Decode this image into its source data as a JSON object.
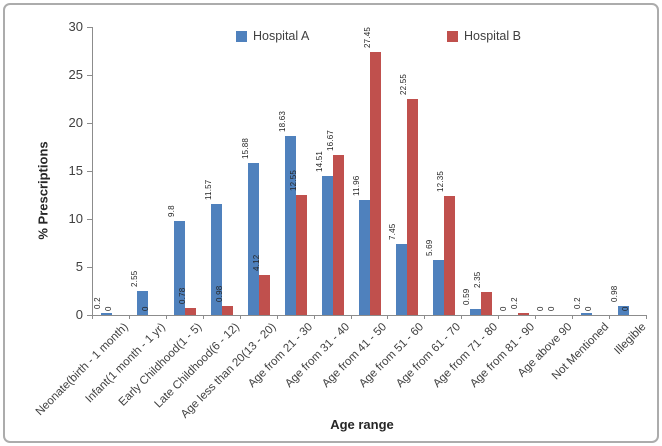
{
  "chart_data": {
    "type": "bar",
    "title": "",
    "xlabel": "Age range",
    "ylabel": "% Prescriptions",
    "ylim": [
      0,
      30
    ],
    "yticks": [
      0,
      5,
      10,
      15,
      20,
      25,
      30
    ],
    "grid": false,
    "legend_position": "top-inside",
    "categories": [
      "Neonate(birth - 1 month)",
      "Infant(1 month - 1 yr)",
      "Early Childhood(1 - 5)",
      "Late Childhood(6 - 12)",
      "Age less than 20(13 - 20)",
      "Age from 21 - 30",
      "Age from 31 - 40",
      "Age from 41 - 50",
      "Age from 51 - 60",
      "Age from 61 - 70",
      "Age from 71 - 80",
      "Age from 81 - 90",
      "Age above 90",
      "Not Mentioned",
      "Illegible"
    ],
    "series": [
      {
        "name": "Hospital A",
        "color": "#4F81BD",
        "values": [
          0.2,
          2.55,
          9.8,
          11.57,
          15.88,
          18.63,
          14.51,
          11.96,
          7.45,
          5.69,
          0.59,
          0,
          0,
          0.2,
          0.98
        ],
        "labels": [
          "0.2",
          "2.55",
          "9.8",
          "11.57",
          "15.88",
          "18.63",
          "14.51",
          "11.96",
          "7.45",
          "5.69",
          "0.59",
          "0",
          "0",
          "0.2",
          "0.98"
        ]
      },
      {
        "name": "Hospital B",
        "color": "#C0504D",
        "values": [
          0,
          0,
          0.78,
          0.98,
          4.12,
          12.55,
          16.67,
          27.45,
          22.55,
          12.35,
          2.35,
          0.2,
          0,
          0,
          0
        ],
        "labels": [
          "0",
          "0",
          "0.78",
          "0.98",
          "4.12",
          "12.55",
          "16.67",
          "27.45",
          "22.55",
          "12.35",
          "2.35",
          "0.2",
          "0",
          "0",
          "0"
        ]
      }
    ]
  },
  "colors": {
    "axis": "#8C8C8C",
    "tick_text": "#404040",
    "value_label_text": "#262626",
    "frame_border": "#ACACAC",
    "background": "#FFFFFF"
  }
}
